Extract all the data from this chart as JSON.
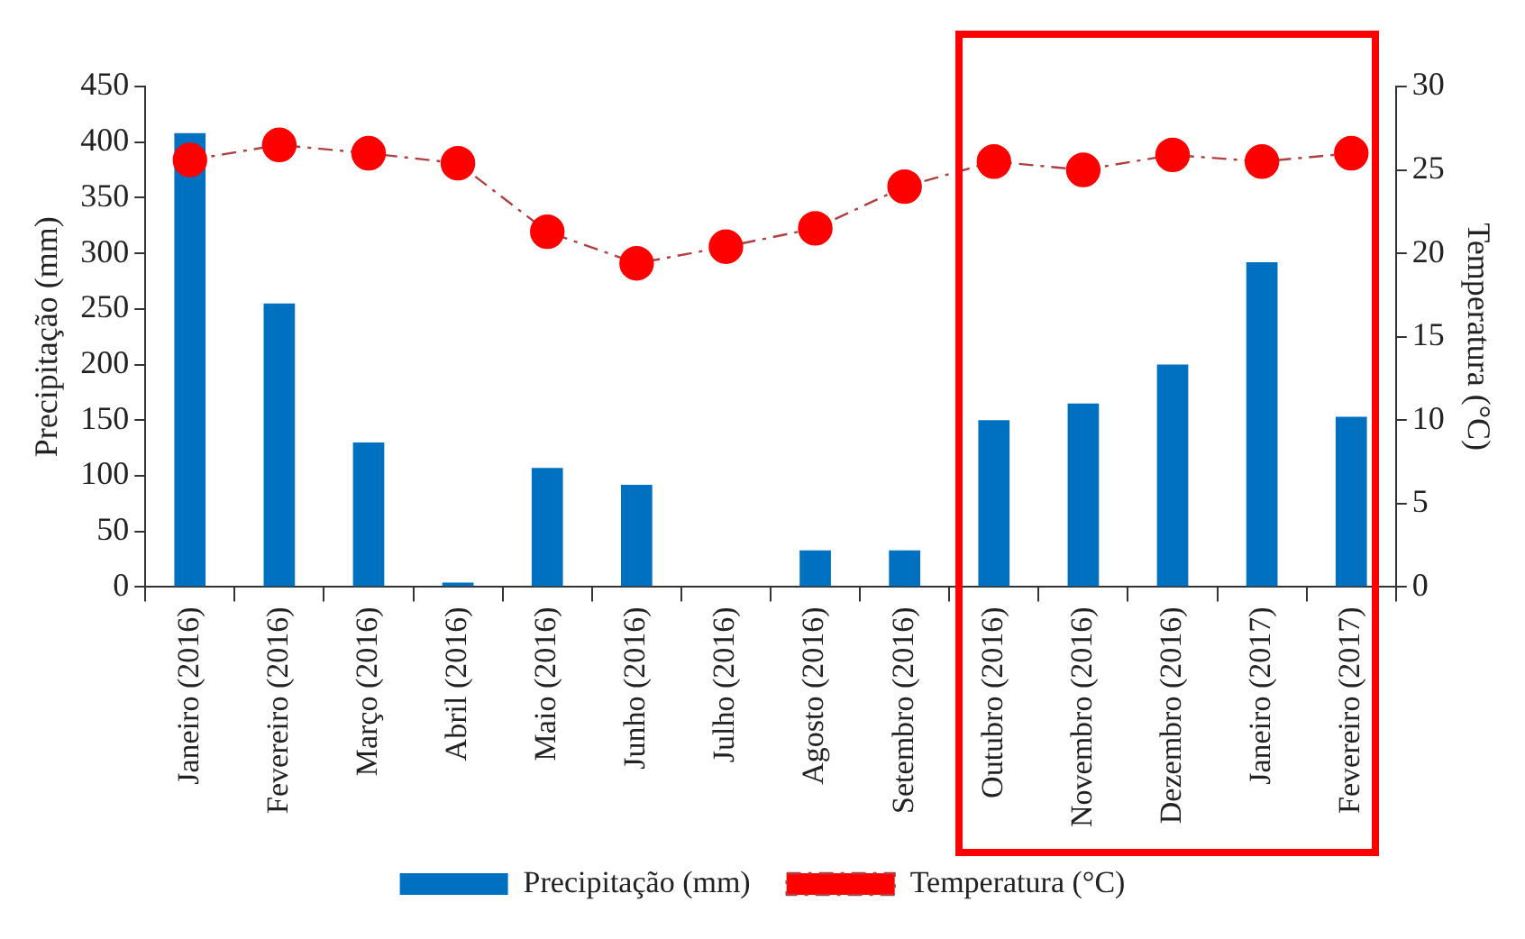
{
  "chart_data": {
    "type": "bar",
    "ylabel": "Precipitação (mm)",
    "y2label": "Temperatura (°C)",
    "categories": [
      "Janeiro (2016)",
      "Fevereiro (2016)",
      "Março (2016)",
      "Abril (2016)",
      "Maio (2016)",
      "Junho (2016)",
      "Julho (2016)",
      "Agosto (2016)",
      "Setembro (2016)",
      "Outubro (2016)",
      "Novembro (2016)",
      "Dezembro (2016)",
      "Janeiro (2017)",
      "Fevereiro (2017)"
    ],
    "series": [
      {
        "name": "Precipitação (mm)",
        "color": "#0070c0",
        "values": [
          408,
          255,
          130,
          4,
          107,
          92,
          0,
          33,
          33,
          150,
          165,
          200,
          292,
          153
        ]
      },
      {
        "name": "Temperatura (°C)",
        "type": "line",
        "axis": "y2",
        "color": "#ff0000",
        "marker": "circle",
        "line_style": "dashed",
        "values": [
          25.6,
          26.5,
          26,
          25.4,
          21.3,
          19.4,
          20.4,
          21.5,
          24,
          25.5,
          25,
          25.9,
          25.5,
          26
        ]
      }
    ],
    "ylim": [
      0,
      450
    ],
    "yticks": [
      0,
      50,
      100,
      150,
      200,
      250,
      300,
      350,
      400,
      450
    ],
    "y2lim": [
      0,
      30
    ],
    "y2ticks": [
      0,
      5,
      10,
      15,
      20,
      25,
      30
    ],
    "grid": false,
    "legend": "bottom"
  }
}
